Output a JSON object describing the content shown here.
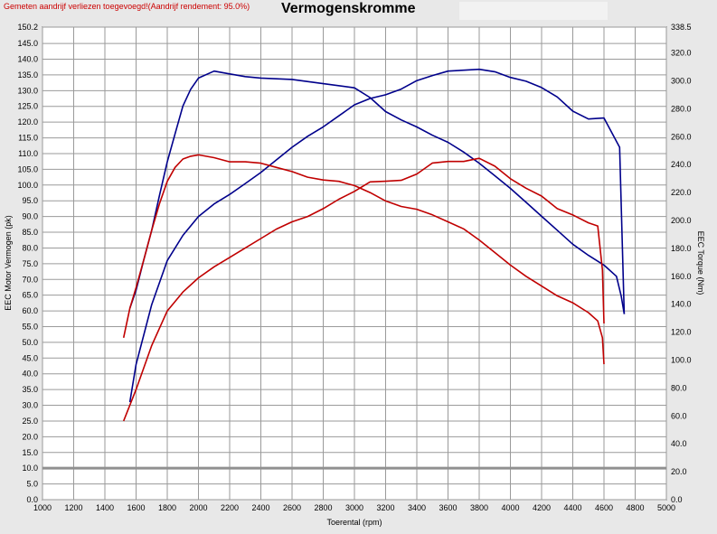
{
  "note": "Gemeten aandrijf verliezen toegevoegd!(Aandrijf rendement: 95.0%)",
  "chart_data": {
    "type": "line",
    "title": "Vermogenskromme",
    "xlabel": "Toerental (rpm)",
    "ylabel_left": "EEC Motor Vermogen (pk)",
    "ylabel_right": "EEC Torque (Nm)",
    "xlim": [
      1000,
      5000
    ],
    "ylim_left": [
      0,
      150.2
    ],
    "ylim_right": [
      0,
      338.5
    ],
    "grid": true,
    "x_ticks": [
      "1000",
      "1200",
      "1400",
      "1600",
      "1800",
      "2000",
      "2200",
      "2400",
      "2600",
      "2800",
      "3000",
      "3200",
      "3400",
      "3600",
      "3800",
      "4000",
      "4200",
      "4400",
      "4600",
      "4800",
      "5000"
    ],
    "left_ticks": [
      "0.0",
      "5.0",
      "10.0",
      "15.0",
      "20.0",
      "25.0",
      "30.0",
      "35.0",
      "40.0",
      "45.0",
      "50.0",
      "55.0",
      "60.0",
      "65.0",
      "70.0",
      "75.0",
      "80.0",
      "85.0",
      "90.0",
      "95.0",
      "100.0",
      "105.0",
      "110.0",
      "115.0",
      "120.0",
      "125.0",
      "130.0",
      "135.0",
      "140.0",
      "145.0",
      "150.2"
    ],
    "right_ticks": [
      "0.0",
      "20.0",
      "40.0",
      "60.0",
      "80.0",
      "100.0",
      "120.0",
      "140.0",
      "160.0",
      "180.0",
      "200.0",
      "220.0",
      "240.0",
      "260.0",
      "280.0",
      "300.0",
      "320.0",
      "338.5"
    ],
    "reference_line_left": 10.0,
    "series": [
      {
        "color": "#00008b",
        "axis": "left",
        "x": [
          1560,
          1600,
          1700,
          1800,
          1900,
          2000,
          2100,
          2200,
          2300,
          2400,
          2500,
          2600,
          2700,
          2800,
          2900,
          3000,
          3100,
          3200,
          3300,
          3400,
          3500,
          3600,
          3700,
          3800,
          3900,
          4000,
          4100,
          4200,
          4300,
          4400,
          4500,
          4600,
          4700,
          4730
        ],
        "y": [
          31,
          43,
          62,
          76,
          84,
          90,
          94,
          97,
          100.5,
          104,
          108,
          112,
          115.5,
          118.5,
          122,
          125.5,
          127.5,
          128.7,
          130.5,
          133.2,
          134.8,
          136.2,
          136.5,
          136.8,
          136,
          134.2,
          133,
          131,
          128,
          123.5,
          121,
          121.3,
          112,
          59
        ]
      },
      {
        "color": "#00008b",
        "axis": "right",
        "x": [
          1560,
          1600,
          1650,
          1700,
          1750,
          1800,
          1850,
          1900,
          1950,
          2000,
          2100,
          2200,
          2300,
          2400,
          2600,
          2800,
          3000,
          3100,
          3200,
          3300,
          3400,
          3500,
          3600,
          3700,
          3800,
          3900,
          4000,
          4100,
          4200,
          4300,
          4400,
          4500,
          4600,
          4680,
          4710,
          4730
        ],
        "y": [
          137,
          150,
          172,
          193,
          218,
          242,
          262,
          282,
          294,
          302,
          307,
          305,
          303,
          302,
          301,
          298,
          295,
          288,
          278,
          272,
          267,
          261,
          256,
          249,
          241,
          232,
          223,
          213,
          203,
          193,
          183,
          175,
          168,
          160,
          146,
          133
        ]
      },
      {
        "color": "#c00000",
        "axis": "left",
        "x": [
          1520,
          1600,
          1700,
          1800,
          1900,
          2000,
          2100,
          2200,
          2300,
          2400,
          2500,
          2600,
          2700,
          2800,
          2900,
          3000,
          3100,
          3200,
          3300,
          3400,
          3500,
          3600,
          3700,
          3800,
          3900,
          4000,
          4100,
          4200,
          4300,
          4400,
          4500,
          4560,
          4590,
          4600
        ],
        "y": [
          25,
          35,
          49,
          60,
          66,
          70.5,
          74,
          77,
          80,
          83,
          86,
          88.3,
          90,
          92.5,
          95.5,
          98,
          101,
          101.2,
          101.5,
          103.5,
          107,
          107.5,
          107.5,
          108.5,
          106,
          102,
          99,
          96.5,
          92.5,
          90.5,
          88,
          87,
          73,
          56
        ]
      },
      {
        "color": "#c00000",
        "axis": "right",
        "x": [
          1520,
          1560,
          1600,
          1650,
          1700,
          1750,
          1800,
          1850,
          1900,
          1950,
          2000,
          2100,
          2200,
          2300,
          2400,
          2500,
          2600,
          2700,
          2800,
          2900,
          3000,
          3100,
          3200,
          3300,
          3400,
          3500,
          3600,
          3700,
          3800,
          3900,
          4000,
          4100,
          4200,
          4300,
          4400,
          4500,
          4560,
          4590,
          4600
        ],
        "y": [
          116,
          137,
          152,
          172,
          193,
          212,
          228,
          238,
          244,
          246,
          247,
          245,
          242,
          242,
          241,
          238,
          235,
          231,
          229,
          228,
          225,
          220,
          214,
          210,
          208,
          204,
          199,
          194,
          186,
          177,
          168,
          160,
          153,
          146,
          141,
          134,
          128,
          116,
          97
        ]
      }
    ]
  }
}
